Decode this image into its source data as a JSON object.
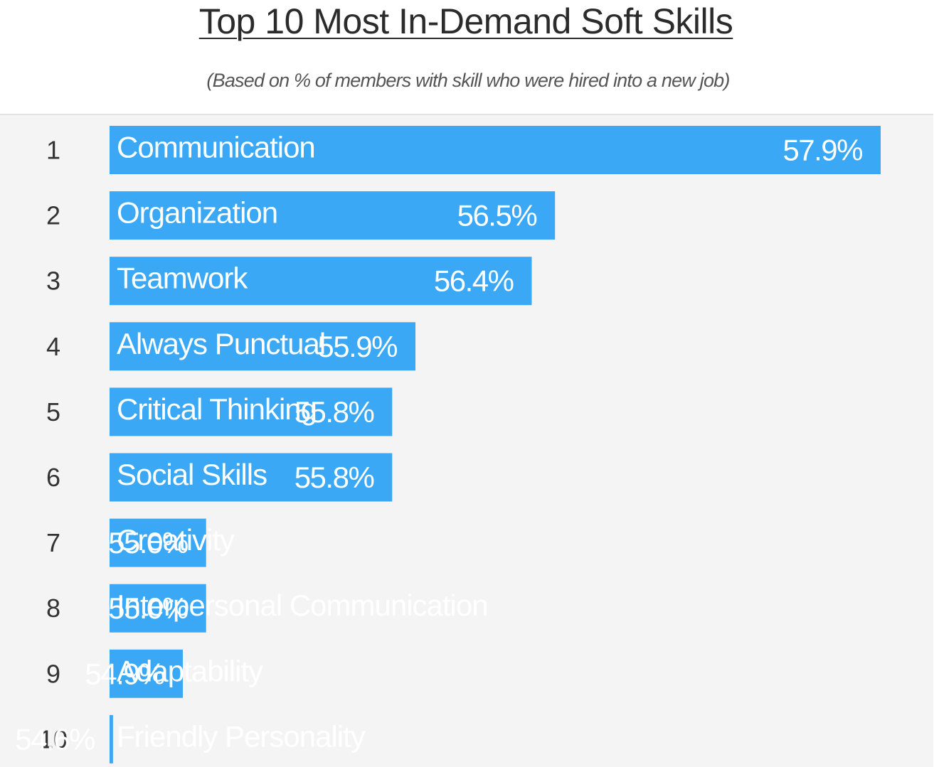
{
  "chart_data": {
    "type": "bar",
    "orientation": "horizontal",
    "title": "Top 10 Most In-Demand Soft Skills",
    "subtitle": "(Based on % of members with skill who were hired into a new job)",
    "ranks": [
      "1",
      "2",
      "3",
      "4",
      "5",
      "6",
      "7",
      "8",
      "9",
      "10"
    ],
    "categories": [
      "Communication",
      "Organization",
      "Teamwork",
      "Always Punctual",
      "Critical Thinking",
      "Social Skills",
      "Creativity",
      "Interpersonal Communication",
      "Adaptability",
      "Friendly Personality"
    ],
    "values": [
      57.9,
      56.5,
      56.4,
      55.9,
      55.8,
      55.8,
      55.0,
      55.0,
      54.9,
      54.6
    ],
    "value_labels": [
      "57.9%",
      "56.5%",
      "56.4%",
      "55.9%",
      "55.8%",
      "55.8%",
      "55.0%",
      "55.0%",
      "54.9%",
      "54.6%"
    ],
    "unit": "%",
    "grid": false,
    "legend": "none",
    "colors": {
      "bar": "#3ba8f5",
      "bar_text": "#ffffff",
      "panel": "#f4f4f4"
    }
  }
}
